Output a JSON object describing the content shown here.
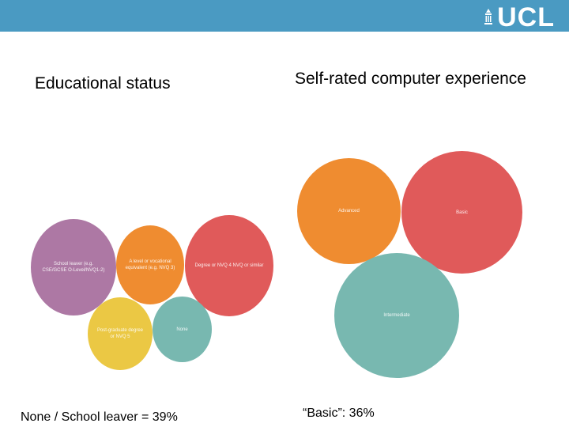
{
  "header": {
    "logo_text": "UCL",
    "colors": {
      "bar": "#4a9ac2",
      "logo": "#ffffff"
    }
  },
  "left": {
    "heading": "Educational status",
    "caption": "None / School leaver = 39%",
    "bubbles": [
      {
        "label": "School leaver (e.g. CSE/GCSE O-Level/NVQ1-2)",
        "color": "#ad78a4"
      },
      {
        "label": "A level or vocational equivalent (e.g. NVQ 3)",
        "color": "#ef8c30"
      },
      {
        "label": "Degree or NVQ 4 NVQ or similar",
        "color": "#e05a5a"
      },
      {
        "label": "Post-graduate degree or NVQ 5",
        "color": "#ebc844"
      },
      {
        "label": "None",
        "color": "#78b8b0"
      }
    ]
  },
  "right": {
    "heading": "Self-rated computer experience",
    "caption": "“Basic”: 36%",
    "bubbles": [
      {
        "label": "Advanced",
        "color": "#ef8c30"
      },
      {
        "label": "Basic",
        "color": "#e05a5a"
      },
      {
        "label": "Intermediate",
        "color": "#78b8b0"
      }
    ]
  }
}
